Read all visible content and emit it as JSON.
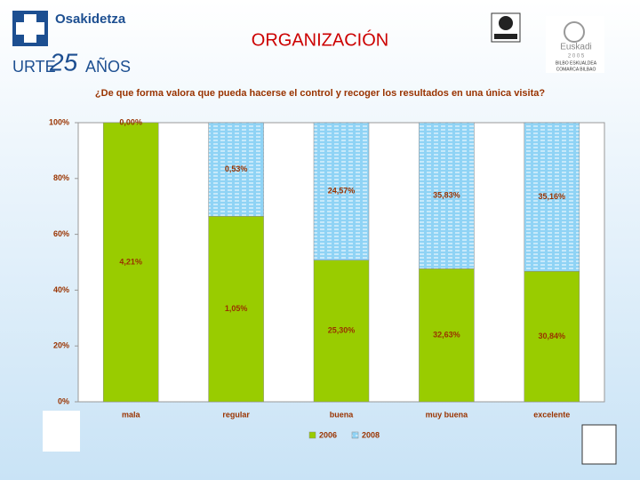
{
  "header": {
    "org": "Osakidetza",
    "urte": "URTE",
    "num": "25",
    "anos": "AÑOS",
    "section": "ORGANIZACIÓN",
    "euskadi": "Euskadi",
    "year": "2 0 0 5",
    "region1": "BILBO ESKUALDEA",
    "region2": "COMARCA BILBAO"
  },
  "chart_data": {
    "type": "bar",
    "stacked": "percent",
    "title": "¿De que forma valora que pueda hacerse el control y recoger los resultados en una única visita?",
    "categories": [
      "mala",
      "regular",
      "buena",
      "muy buena",
      "excelente"
    ],
    "series": [
      {
        "name": "2006",
        "color": "#99cc00",
        "values": [
          4.21,
          1.05,
          25.3,
          32.63,
          30.84
        ],
        "value_labels": [
          "4,21%",
          "1,05%",
          "25,30%",
          "32,63%",
          "30,84%"
        ]
      },
      {
        "name": "2008",
        "color": "#8fd3f5",
        "values": [
          0,
          0.53,
          24.57,
          35.83,
          35.16
        ],
        "value_labels": [
          "0,00%",
          "0,53%",
          "24,57%",
          "35,83%",
          "35,16%"
        ]
      }
    ],
    "ylim": [
      0,
      100
    ],
    "yticks": [
      {
        "value": 0,
        "label": "0%"
      },
      {
        "value": 20,
        "label": "20%"
      },
      {
        "value": 40,
        "label": "40%"
      },
      {
        "value": 60,
        "label": "60%"
      },
      {
        "value": 80,
        "label": "80%"
      },
      {
        "value": 100,
        "label": "100%"
      }
    ],
    "legend": "bottom"
  }
}
